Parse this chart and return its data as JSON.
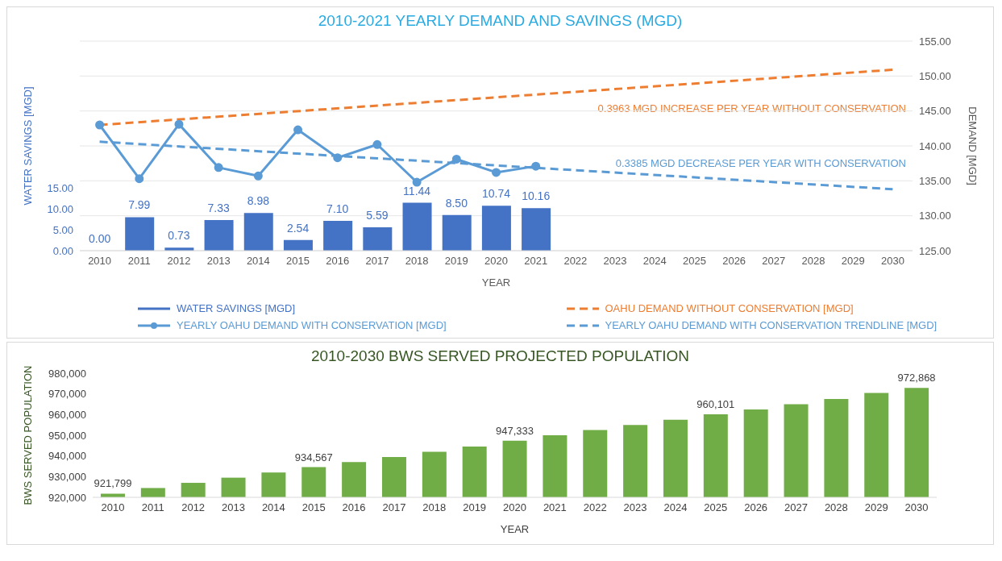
{
  "chart_data": [
    {
      "type": "bar",
      "title": "2010-2021 YEARLY DEMAND AND SAVINGS (MGD)",
      "xlabel": "YEAR",
      "ylabel": "WATER SAVINGS [MGD]",
      "y2label": "DEMAND [MGD]",
      "xlim": [
        2009.5,
        2030.5
      ],
      "xticks": [
        2010,
        2011,
        2012,
        2013,
        2014,
        2015,
        2016,
        2017,
        2018,
        2019,
        2020,
        2021,
        2022,
        2023,
        2024,
        2025,
        2026,
        2027,
        2028,
        2029,
        2030
      ],
      "ylim": [
        0,
        50
      ],
      "yticks": [
        {
          "value": 0,
          "label": "0.00"
        },
        {
          "value": 5,
          "label": "5.00"
        },
        {
          "value": 10,
          "label": "10.00"
        },
        {
          "value": 15,
          "label": "15.00"
        }
      ],
      "y2lim": [
        125,
        155
      ],
      "y2ticks": [
        {
          "value": 125,
          "label": "125.00"
        },
        {
          "value": 130,
          "label": "130.00"
        },
        {
          "value": 135,
          "label": "135.00"
        },
        {
          "value": 140,
          "label": "140.00"
        },
        {
          "value": 145,
          "label": "145.00"
        },
        {
          "value": 150,
          "label": "150.00"
        },
        {
          "value": 155,
          "label": "155.00"
        }
      ],
      "grid": "y",
      "legend": "bottom",
      "annotations": [
        "0.3963 MGD INCREASE PER YEAR WITHOUT CONSERVATION",
        "0.3385 MGD DECREASE PER YEAR WITH CONSERVATION"
      ],
      "series": [
        {
          "name": "WATER SAVINGS [MGD]",
          "color": "#4472c4",
          "x": [
            2010,
            2011,
            2012,
            2013,
            2014,
            2015,
            2016,
            2017,
            2018,
            2019,
            2020,
            2021
          ],
          "values": [
            0.0,
            7.99,
            0.73,
            7.33,
            8.98,
            2.54,
            7.1,
            5.59,
            11.44,
            8.5,
            10.74,
            10.16
          ],
          "value_labels": [
            "0.00",
            "7.99",
            "0.73",
            "7.33",
            "8.98",
            "2.54",
            "7.10",
            "5.59",
            "11.44",
            "8.50",
            "10.74",
            "10.16"
          ]
        },
        {
          "name": "OAHU DEMAND WITHOUT CONSERVATION [MGD]",
          "type": "line",
          "axis": "y2",
          "color": "#ed7d31",
          "line_style": "dashed",
          "x": [
            2010,
            2030
          ],
          "values": [
            143.0,
            150.9
          ]
        },
        {
          "name": "YEARLY OAHU DEMAND WITH CONSERVATION [MGD]",
          "type": "line",
          "axis": "y2",
          "color": "#5b9bd5",
          "line_style": "solid",
          "marker": "circle",
          "x": [
            2010,
            2011,
            2012,
            2013,
            2014,
            2015,
            2016,
            2017,
            2018,
            2019,
            2020,
            2021
          ],
          "values": [
            143.0,
            135.3,
            143.1,
            136.9,
            135.7,
            142.3,
            138.3,
            140.2,
            134.8,
            138.1,
            136.2,
            137.1
          ]
        },
        {
          "name": "YEARLY OAHU DEMAND WITH CONSERVATION TRENDLINE [MGD]",
          "type": "line",
          "axis": "y2",
          "color": "#5b9bd5",
          "line_style": "dashed",
          "x": [
            2010,
            2030
          ],
          "values": [
            140.6,
            133.8
          ]
        }
      ]
    },
    {
      "type": "bar",
      "title": "2010-2030 BWS SERVED PROJECTED POPULATION",
      "xlabel": "YEAR",
      "ylabel": "BWS SERVED POPULATION",
      "categories": [
        "2010",
        "2011",
        "2012",
        "2013",
        "2014",
        "2015",
        "2016",
        "2017",
        "2018",
        "2019",
        "2020",
        "2021",
        "2022",
        "2023",
        "2024",
        "2025",
        "2026",
        "2027",
        "2028",
        "2029",
        "2030"
      ],
      "values": [
        921799,
        924500,
        927000,
        929500,
        932000,
        934567,
        937000,
        939500,
        942000,
        944500,
        947333,
        950000,
        952500,
        955000,
        957500,
        960101,
        962500,
        965000,
        967500,
        970500,
        972868
      ],
      "value_labels": [
        "921,799",
        null,
        null,
        null,
        null,
        "934,567",
        null,
        null,
        null,
        null,
        "947,333",
        null,
        null,
        null,
        null,
        "960,101",
        null,
        null,
        null,
        null,
        "972,868"
      ],
      "color": "#70ad47",
      "ylim": [
        920000,
        980000
      ],
      "yticks": [
        {
          "value": 920000,
          "label": "920,000"
        },
        {
          "value": 930000,
          "label": "930,000"
        },
        {
          "value": 940000,
          "label": "940,000"
        },
        {
          "value": 950000,
          "label": "950,000"
        },
        {
          "value": 960000,
          "label": "960,000"
        },
        {
          "value": 970000,
          "label": "970,000"
        },
        {
          "value": 980000,
          "label": "980,000"
        }
      ]
    }
  ]
}
